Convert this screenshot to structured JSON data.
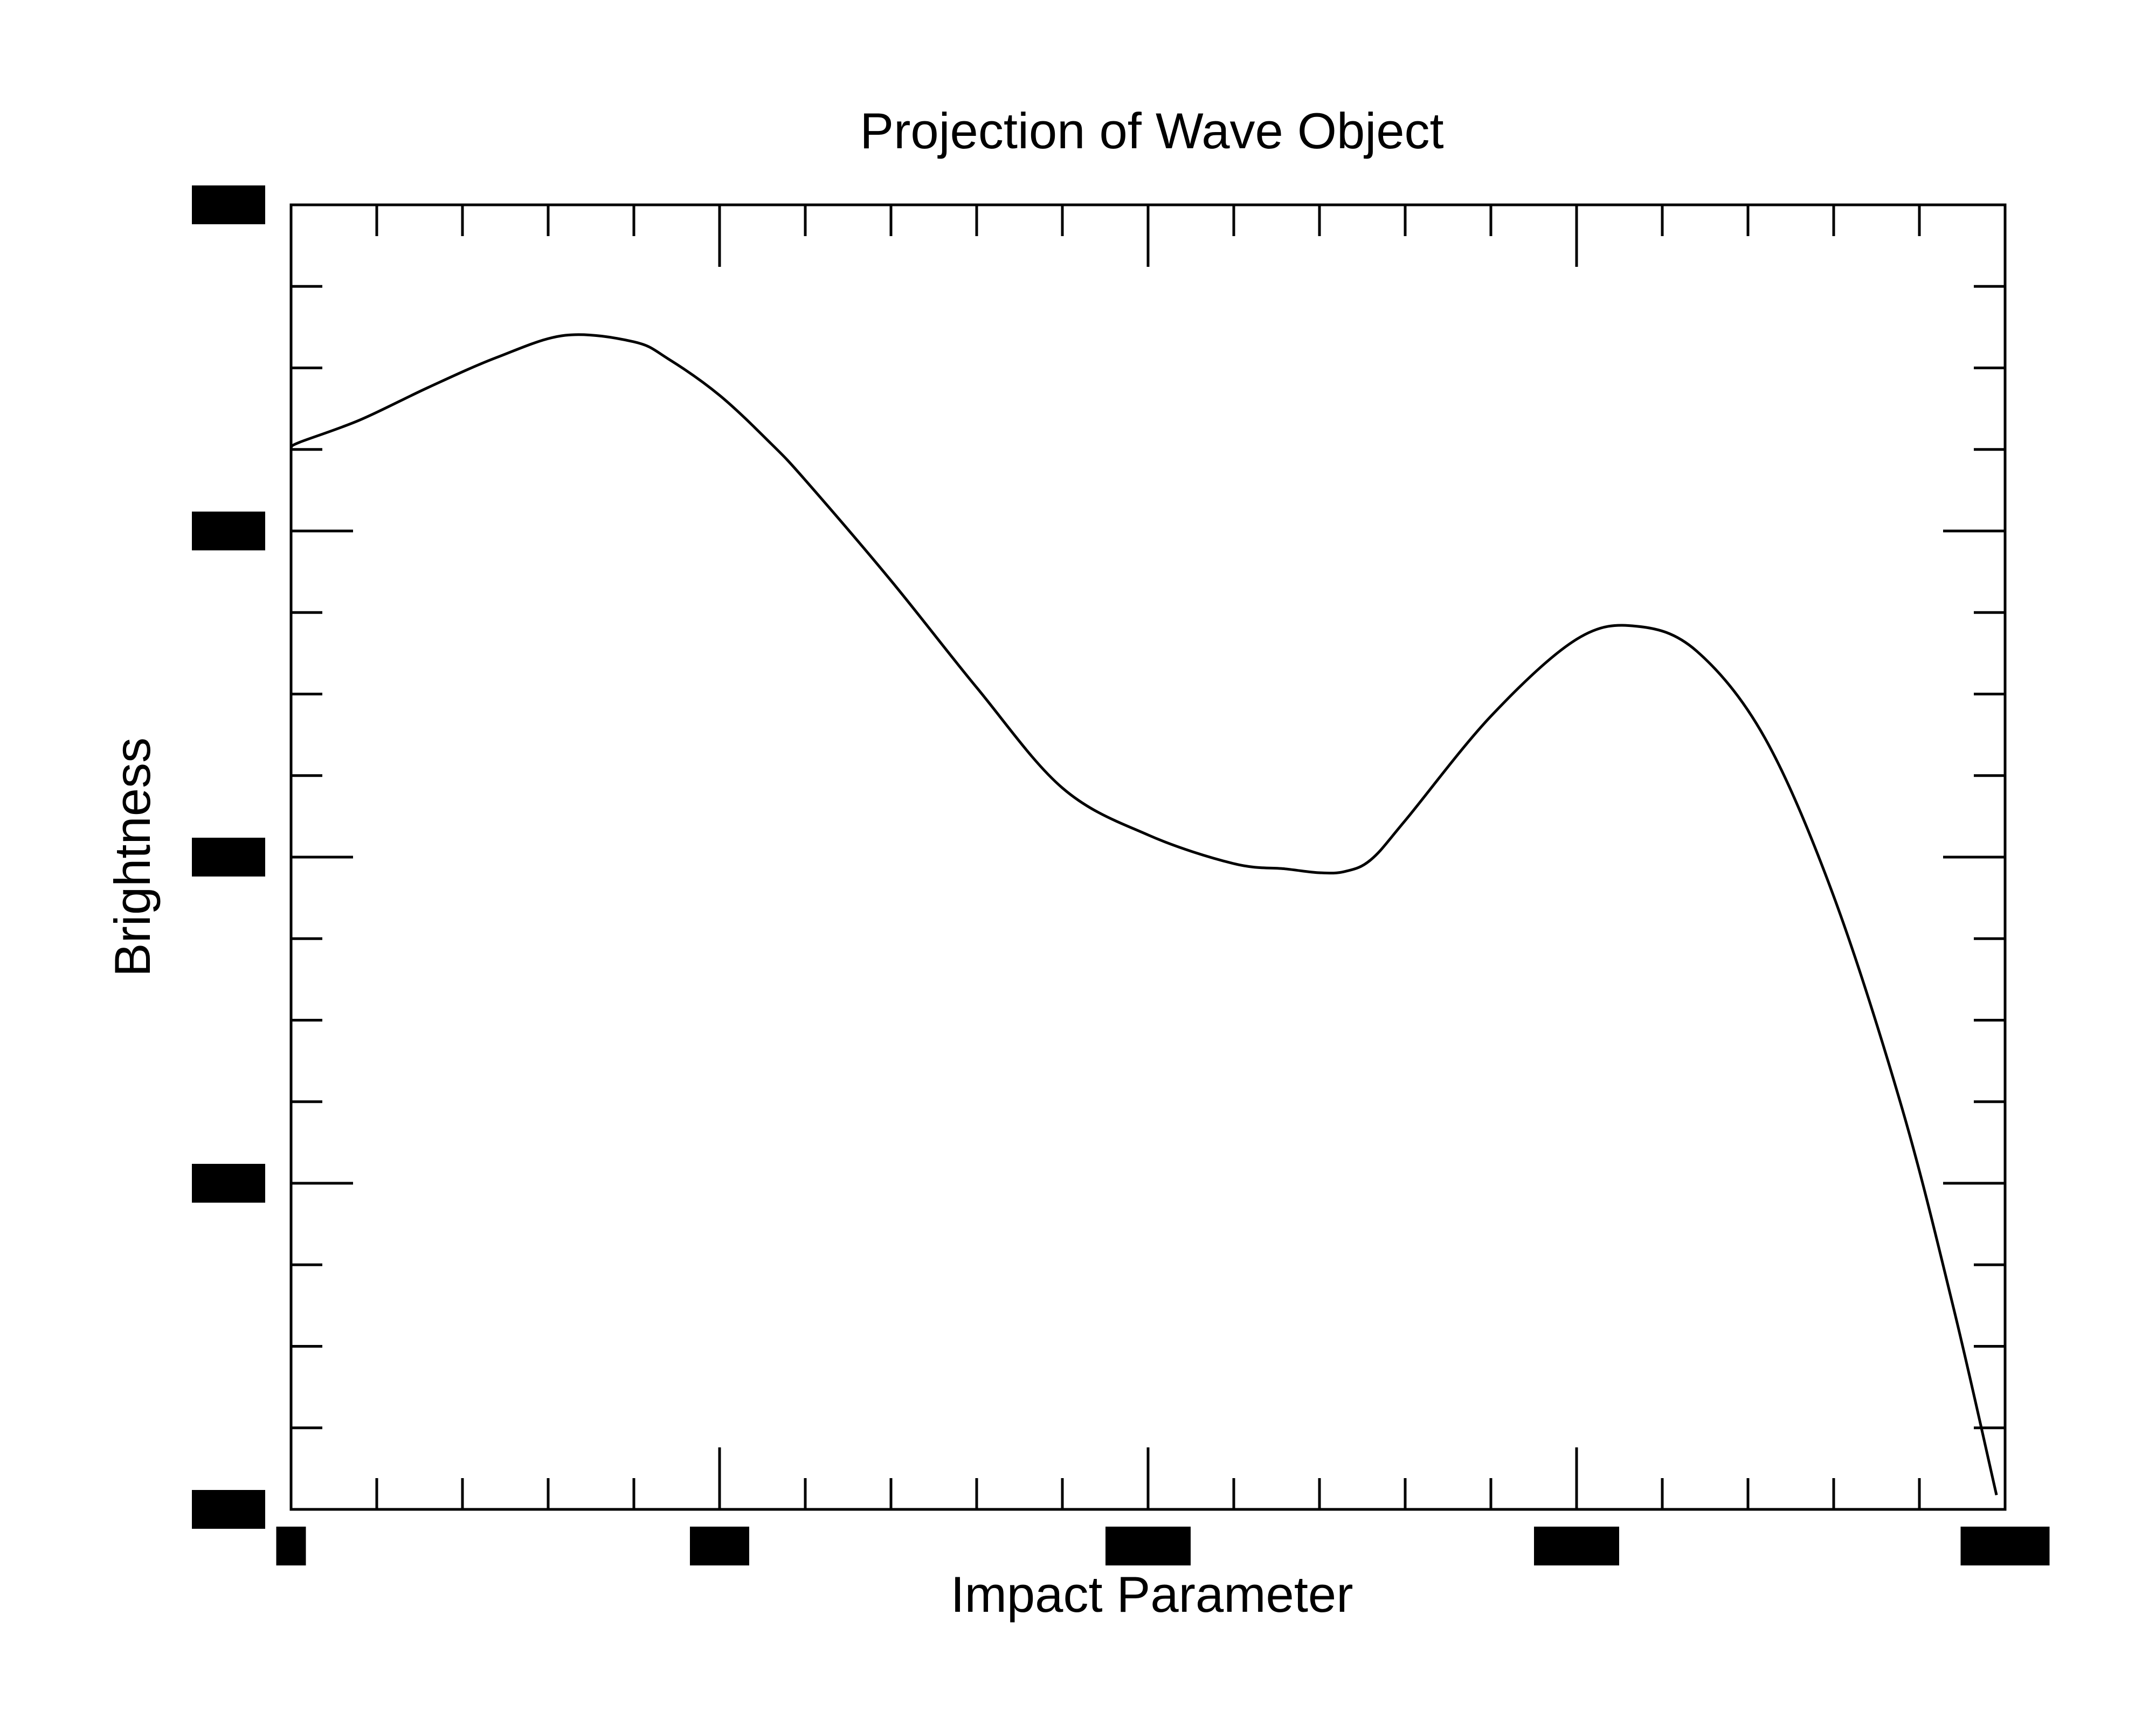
{
  "chart_data": {
    "type": "line",
    "title": "Projection of Wave Object",
    "xlabel": "Impact Parameter",
    "ylabel": "Brightness",
    "xlim": [
      0,
      1
    ],
    "ylim": [
      0,
      1
    ],
    "x_major_ticks": [
      0,
      0.25,
      0.5,
      0.75,
      1.0
    ],
    "x_minor_per_major": 5,
    "y_major_ticks": [
      0,
      0.25,
      0.5,
      0.75,
      1.0
    ],
    "y_minor_per_major": 4,
    "tick_labels": "redacted",
    "grid": false,
    "legend": "none",
    "line_color": "#000000",
    "series": [
      {
        "x": [
          0.0,
          0.005,
          0.04,
          0.08,
          0.12,
          0.16,
          0.2,
          0.22,
          0.25,
          0.28,
          0.3,
          0.35,
          0.4,
          0.45,
          0.5,
          0.55,
          0.58,
          0.6,
          0.615,
          0.63,
          0.65,
          0.7,
          0.75,
          0.785,
          0.82,
          0.86,
          0.9,
          0.94,
          0.97,
          0.995
        ],
        "y": [
          0.814,
          0.818,
          0.835,
          0.86,
          0.883,
          0.9,
          0.895,
          0.882,
          0.854,
          0.817,
          0.789,
          0.712,
          0.63,
          0.553,
          0.517,
          0.495,
          0.491,
          0.488,
          0.489,
          0.498,
          0.528,
          0.608,
          0.667,
          0.677,
          0.658,
          0.591,
          0.47,
          0.307,
          0.154,
          0.011
        ]
      }
    ]
  }
}
